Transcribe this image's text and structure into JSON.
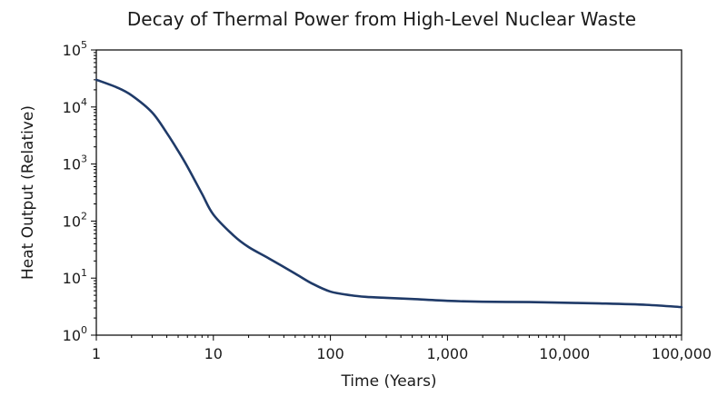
{
  "chart_data": {
    "type": "line",
    "title": "Decay of Thermal Power from High-Level Nuclear Waste",
    "xlabel": "Time (Years)",
    "ylabel": "Heat Output (Relative)",
    "xscale": "log",
    "yscale": "log",
    "xlim": [
      1,
      100000
    ],
    "ylim": [
      1,
      100000
    ],
    "grid": false,
    "legend": "none",
    "x_ticks": [
      {
        "value": 1,
        "label": "1"
      },
      {
        "value": 10,
        "label": "10"
      },
      {
        "value": 100,
        "label": "100"
      },
      {
        "value": 1000,
        "label": "1,000"
      },
      {
        "value": 10000,
        "label": "10,000"
      },
      {
        "value": 100000,
        "label": "100,000"
      }
    ],
    "y_ticks": [
      {
        "value": 1,
        "base": "10",
        "exp": "0"
      },
      {
        "value": 10,
        "base": "10",
        "exp": "1"
      },
      {
        "value": 100,
        "base": "10",
        "exp": "2"
      },
      {
        "value": 1000,
        "base": "10",
        "exp": "3"
      },
      {
        "value": 10000,
        "base": "10",
        "exp": "4"
      },
      {
        "value": 100000,
        "base": "10",
        "exp": "5"
      }
    ],
    "series": [
      {
        "color": "#1f3a68",
        "x": [
          1,
          1.5,
          2,
          3,
          4,
          5,
          6,
          8,
          10,
          15,
          20,
          30,
          50,
          70,
          100,
          150,
          200,
          300,
          500,
          1000,
          2000,
          5000,
          10000,
          20000,
          50000,
          100000
        ],
        "y": [
          30000,
          22000,
          16000,
          8000,
          3500,
          1700,
          900,
          300,
          130,
          55,
          35,
          22,
          12,
          8,
          5.8,
          5,
          4.7,
          4.5,
          4.3,
          4.0,
          3.85,
          3.8,
          3.7,
          3.6,
          3.4,
          3.1
        ]
      }
    ]
  }
}
